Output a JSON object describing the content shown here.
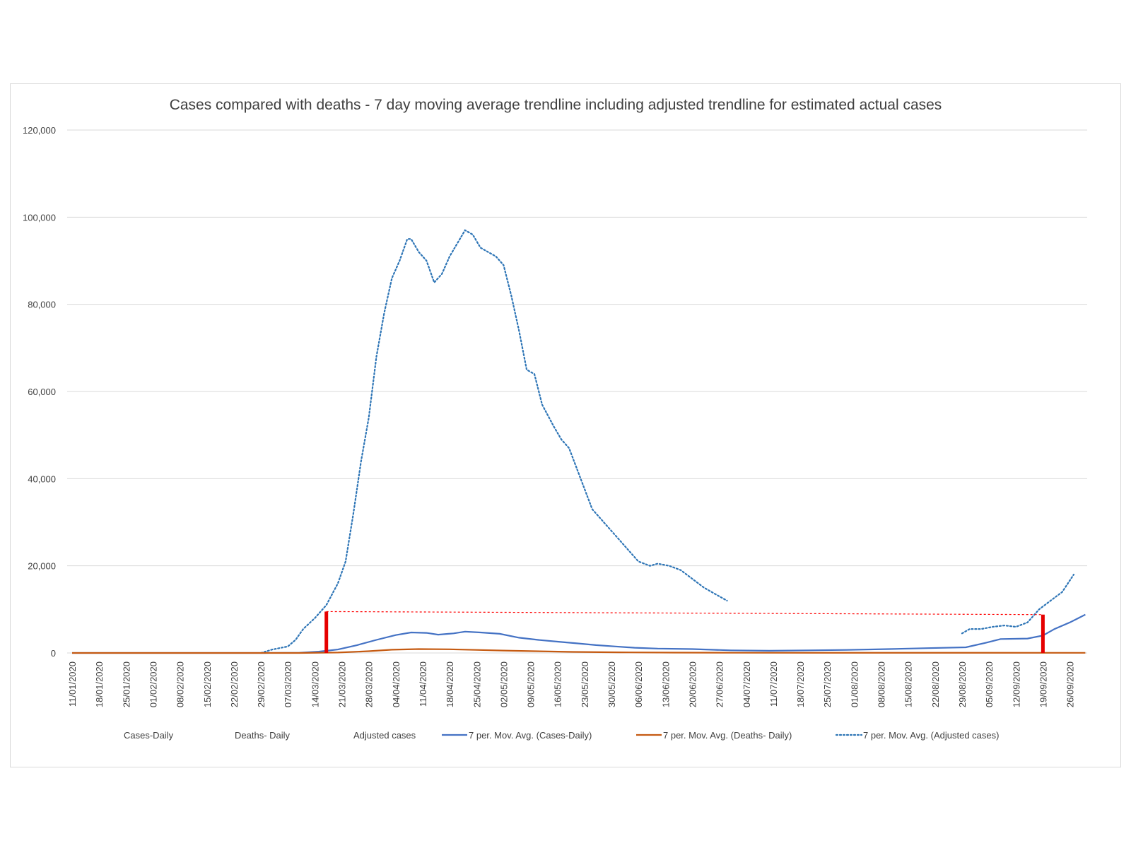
{
  "chart_data": {
    "type": "line",
    "title": "Cases compared with deaths - 7 day moving average trendline including adjusted trendline for estimated actual cases",
    "xlabel": "",
    "ylabel": "",
    "ylim": [
      0,
      120000
    ],
    "yticks": [
      "0",
      "20,000",
      "40,000",
      "60,000",
      "80,000",
      "100,000",
      "120,000"
    ],
    "ytick_values": [
      0,
      20000,
      40000,
      60000,
      80000,
      100000,
      120000
    ],
    "x_tick_labels": [
      "11/01/2020",
      "18/01/2020",
      "25/01/2020",
      "01/02/2020",
      "08/02/2020",
      "15/02/2020",
      "22/02/2020",
      "29/02/2020",
      "07/03/2020",
      "14/03/2020",
      "21/03/2020",
      "28/03/2020",
      "04/04/2020",
      "11/04/2020",
      "18/04/2020",
      "25/04/2020",
      "02/05/2020",
      "09/05/2020",
      "16/05/2020",
      "23/05/2020",
      "30/05/2020",
      "06/06/2020",
      "13/06/2020",
      "20/06/2020",
      "27/06/2020",
      "04/07/2020",
      "11/07/2020",
      "18/07/2020",
      "25/07/2020",
      "01/08/2020",
      "08/08/2020",
      "15/08/2020",
      "22/08/2020",
      "29/08/2020",
      "05/09/2020",
      "12/09/2020",
      "19/09/2020",
      "26/09/2020"
    ],
    "grid": true,
    "legend_position": "bottom",
    "legend": [
      {
        "name": "Cases-Daily",
        "style": "none",
        "color": ""
      },
      {
        "name": "Deaths- Daily",
        "style": "none",
        "color": ""
      },
      {
        "name": "Adjusted cases",
        "style": "none",
        "color": ""
      },
      {
        "name": "7 per. Mov. Avg. (Cases-Daily)",
        "style": "solid",
        "color": "#4472c4"
      },
      {
        "name": "7 per. Mov. Avg. (Deaths- Daily)",
        "style": "solid",
        "color": "#c55a11"
      },
      {
        "name": "7 per. Mov. Avg. (Adjusted cases)",
        "style": "dotted",
        "color": "#2e75b6"
      }
    ],
    "series": [
      {
        "name": "7 per. Mov. Avg. (Adjusted cases)",
        "color": "#2e75b6",
        "style": "dotted",
        "segments": [
          [
            [
              "2020-02-29",
              0
            ],
            [
              "2020-03-03",
              800
            ],
            [
              "2020-03-07",
              1500
            ],
            [
              "2020-03-09",
              3000
            ],
            [
              "2020-03-11",
              5500
            ],
            [
              "2020-03-14",
              8000
            ],
            [
              "2020-03-17",
              11000
            ],
            [
              "2020-03-20",
              16000
            ],
            [
              "2020-03-22",
              21000
            ],
            [
              "2020-03-24",
              32000
            ],
            [
              "2020-03-26",
              44000
            ],
            [
              "2020-03-28",
              54000
            ],
            [
              "2020-03-30",
              68000
            ],
            [
              "2020-04-01",
              78000
            ],
            [
              "2020-04-03",
              86000
            ],
            [
              "2020-04-05",
              90000
            ],
            [
              "2020-04-07",
              95000
            ],
            [
              "2020-04-08",
              95000
            ],
            [
              "2020-04-10",
              92000
            ],
            [
              "2020-04-12",
              90000
            ],
            [
              "2020-04-14",
              85000
            ],
            [
              "2020-04-16",
              87000
            ],
            [
              "2020-04-18",
              91000
            ],
            [
              "2020-04-20",
              94000
            ],
            [
              "2020-04-22",
              97000
            ],
            [
              "2020-04-24",
              96000
            ],
            [
              "2020-04-26",
              93000
            ],
            [
              "2020-04-28",
              92000
            ],
            [
              "2020-04-30",
              91000
            ],
            [
              "2020-05-02",
              89000
            ],
            [
              "2020-05-04",
              82000
            ],
            [
              "2020-05-06",
              74000
            ],
            [
              "2020-05-08",
              65000
            ],
            [
              "2020-05-10",
              64000
            ],
            [
              "2020-05-12",
              57000
            ],
            [
              "2020-05-15",
              52000
            ],
            [
              "2020-05-17",
              49000
            ],
            [
              "2020-05-19",
              47000
            ],
            [
              "2020-05-22",
              40000
            ],
            [
              "2020-05-25",
              33000
            ],
            [
              "2020-05-28",
              30000
            ],
            [
              "2020-05-31",
              27000
            ],
            [
              "2020-06-03",
              24000
            ],
            [
              "2020-06-06",
              21000
            ],
            [
              "2020-06-09",
              20000
            ],
            [
              "2020-06-11",
              20500
            ],
            [
              "2020-06-14",
              20000
            ],
            [
              "2020-06-17",
              19000
            ],
            [
              "2020-06-20",
              17000
            ],
            [
              "2020-06-23",
              15000
            ],
            [
              "2020-06-26",
              13500
            ],
            [
              "2020-06-29",
              12000
            ]
          ],
          [
            [
              "2020-08-29",
              4500
            ],
            [
              "2020-08-31",
              5500
            ],
            [
              "2020-09-03",
              5500
            ],
            [
              "2020-09-06",
              6000
            ],
            [
              "2020-09-09",
              6300
            ],
            [
              "2020-09-12",
              6000
            ],
            [
              "2020-09-15",
              7000
            ],
            [
              "2020-09-18",
              10000
            ],
            [
              "2020-09-21",
              12000
            ],
            [
              "2020-09-24",
              14000
            ],
            [
              "2020-09-27",
              18000
            ]
          ]
        ]
      },
      {
        "name": "7 per. Mov. Avg. (Cases-Daily)",
        "color": "#4472c4",
        "style": "solid",
        "segments": [
          [
            [
              "2020-01-11",
              0
            ],
            [
              "2020-03-01",
              0
            ],
            [
              "2020-03-10",
              50
            ],
            [
              "2020-03-15",
              300
            ],
            [
              "2020-03-20",
              800
            ],
            [
              "2020-03-25",
              1800
            ],
            [
              "2020-03-30",
              3000
            ],
            [
              "2020-04-04",
              4100
            ],
            [
              "2020-04-08",
              4700
            ],
            [
              "2020-04-12",
              4600
            ],
            [
              "2020-04-15",
              4200
            ],
            [
              "2020-04-19",
              4500
            ],
            [
              "2020-04-22",
              4900
            ],
            [
              "2020-04-26",
              4700
            ],
            [
              "2020-05-01",
              4400
            ],
            [
              "2020-05-06",
              3500
            ],
            [
              "2020-05-11",
              3000
            ],
            [
              "2020-05-16",
              2600
            ],
            [
              "2020-05-21",
              2200
            ],
            [
              "2020-05-26",
              1800
            ],
            [
              "2020-05-31",
              1500
            ],
            [
              "2020-06-05",
              1200
            ],
            [
              "2020-06-11",
              1000
            ],
            [
              "2020-06-20",
              900
            ],
            [
              "2020-06-30",
              600
            ],
            [
              "2020-07-10",
              500
            ],
            [
              "2020-07-20",
              600
            ],
            [
              "2020-07-30",
              700
            ],
            [
              "2020-08-10",
              900
            ],
            [
              "2020-08-20",
              1100
            ],
            [
              "2020-08-30",
              1300
            ],
            [
              "2020-09-04",
              2300
            ],
            [
              "2020-09-08",
              3200
            ],
            [
              "2020-09-15",
              3300
            ],
            [
              "2020-09-19",
              4000
            ],
            [
              "2020-09-22",
              5500
            ],
            [
              "2020-09-26",
              7000
            ],
            [
              "2020-09-30",
              8800
            ]
          ]
        ]
      },
      {
        "name": "7 per. Mov. Avg. (Deaths- Daily)",
        "color": "#c55a11",
        "style": "solid",
        "segments": [
          [
            [
              "2020-01-11",
              0
            ],
            [
              "2020-03-10",
              0
            ],
            [
              "2020-03-20",
              100
            ],
            [
              "2020-03-28",
              400
            ],
            [
              "2020-04-03",
              750
            ],
            [
              "2020-04-10",
              900
            ],
            [
              "2020-04-18",
              850
            ],
            [
              "2020-04-25",
              700
            ],
            [
              "2020-05-02",
              550
            ],
            [
              "2020-05-10",
              400
            ],
            [
              "2020-05-20",
              250
            ],
            [
              "2020-06-01",
              150
            ],
            [
              "2020-06-15",
              80
            ],
            [
              "2020-07-01",
              50
            ],
            [
              "2020-09-30",
              30
            ]
          ]
        ]
      }
    ],
    "annotations": {
      "red_bars": [
        {
          "date": "2020-03-17",
          "value": 9500
        },
        {
          "date": "2020-09-19",
          "value": 8800
        }
      ],
      "red_dashed_line": [
        [
          "2020-03-17",
          9500
        ],
        [
          "2020-09-19",
          8800
        ]
      ]
    }
  }
}
